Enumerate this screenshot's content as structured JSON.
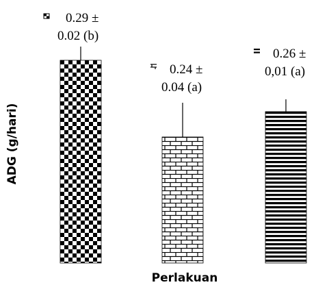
{
  "chart_data": {
    "type": "bar",
    "title": "",
    "xlabel": "Perlakuan",
    "ylabel": "ADG (g/hari)",
    "ylim": [
      0,
      0.3
    ],
    "categories": [
      "",
      "",
      ""
    ],
    "values": [
      0.29,
      0.24,
      0.26
    ],
    "errors": [
      0.02,
      0.04,
      0.01
    ],
    "annotations": [
      [
        "0.29 ±",
        "0.02 (b)"
      ],
      [
        "0.24 ±",
        "0.04 (a)"
      ],
      [
        "0.26 ±",
        "0,01 (a)"
      ]
    ],
    "patterns": [
      "checker",
      "brick",
      "horizontal-lines"
    ],
    "legend": "none",
    "grid": false,
    "colors": {
      "bar_ink": "#000000",
      "background": "#ffffff"
    }
  }
}
